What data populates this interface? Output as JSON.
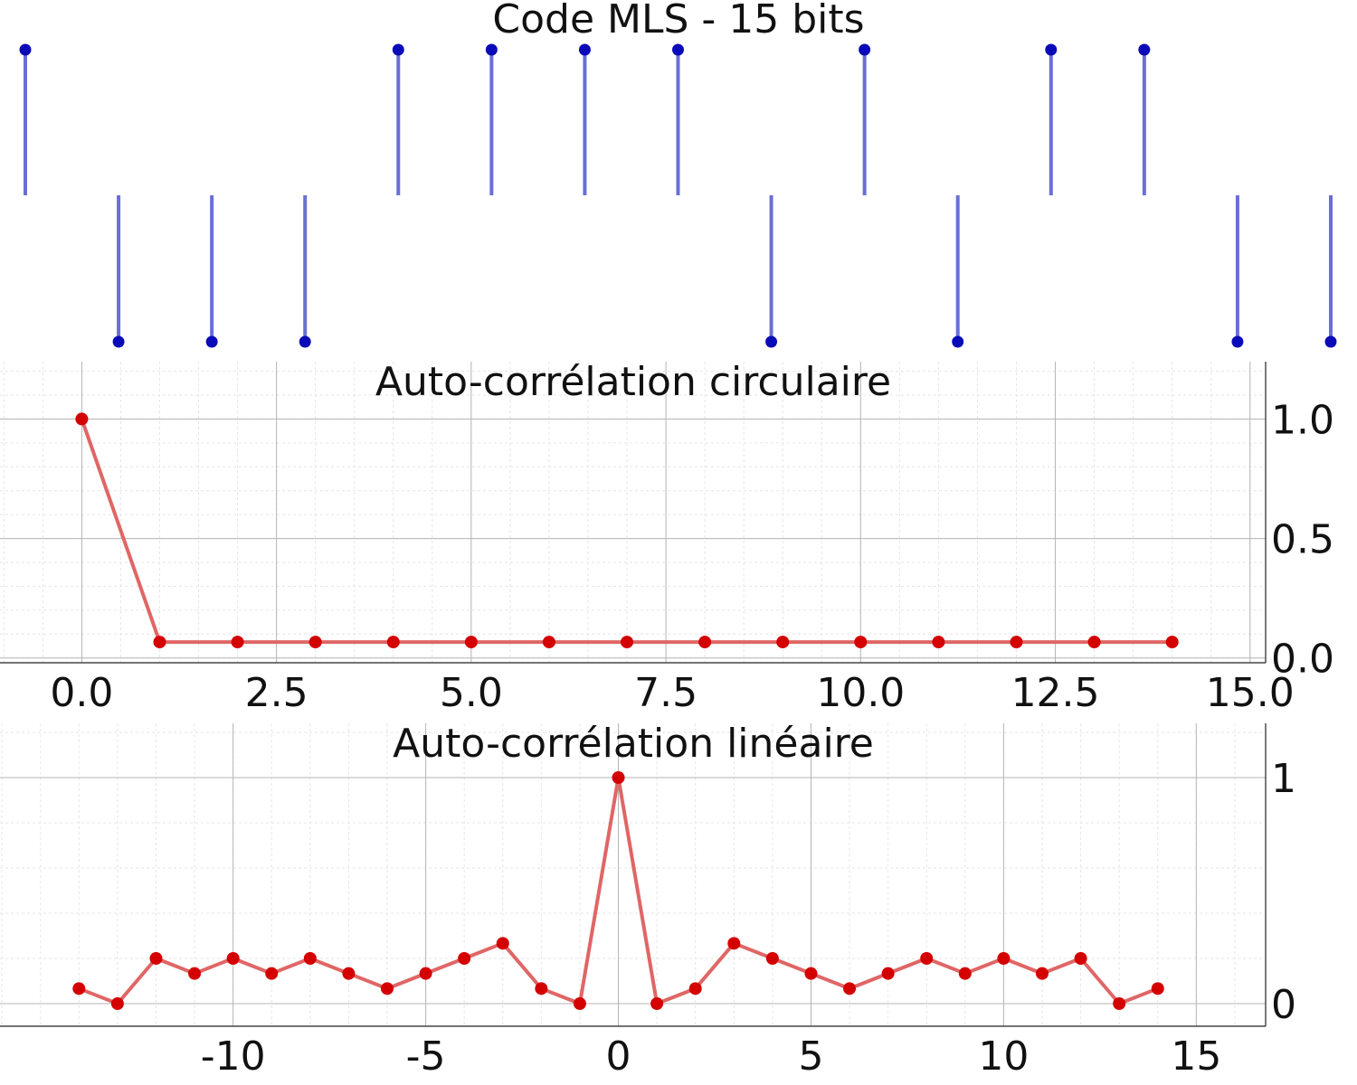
{
  "chart_data": [
    {
      "type": "stem",
      "title": "Code MLS - 15 bits",
      "x": [
        0,
        1,
        2,
        3,
        4,
        5,
        6,
        7,
        8,
        9,
        10,
        11,
        12,
        13,
        14
      ],
      "values": [
        1,
        -1,
        -1,
        -1,
        1,
        1,
        1,
        1,
        -1,
        1,
        -1,
        1,
        1,
        -1,
        -1
      ],
      "ylim": [
        -1,
        1
      ],
      "grid": false,
      "color": "#6a6fd6",
      "marker_color": "#0a0ab8"
    },
    {
      "type": "line",
      "title": "Auto-corrélation circulaire",
      "x": [
        0,
        1,
        2,
        3,
        4,
        5,
        6,
        7,
        8,
        9,
        10,
        11,
        12,
        13,
        14
      ],
      "values": [
        1,
        0.0667,
        0.0667,
        0.0667,
        0.0667,
        0.0667,
        0.0667,
        0.0667,
        0.0667,
        0.0667,
        0.0667,
        0.0667,
        0.0667,
        0.0667,
        0.0667
      ],
      "xlim": [
        -1.05,
        15.2
      ],
      "ylim": [
        -0.02,
        1.24
      ],
      "xticks": [
        0,
        2.5,
        5,
        7.5,
        10,
        12.5,
        15
      ],
      "xtick_labels": [
        "0.0",
        "2.5",
        "5.0",
        "7.5",
        "10.0",
        "12.5",
        "15.0"
      ],
      "yticks": [
        0,
        0.5,
        1
      ],
      "ytick_labels": [
        "0.0",
        "0.5",
        "1.0"
      ],
      "yaxis_side": "right",
      "grid": true,
      "color": "#e06666",
      "marker_color": "#d40000"
    },
    {
      "type": "line",
      "title": "Auto-corrélation linéaire",
      "x": [
        -14,
        -13,
        -12,
        -11,
        -10,
        -9,
        -8,
        -7,
        -6,
        -5,
        -4,
        -3,
        -2,
        -1,
        0,
        1,
        2,
        3,
        4,
        5,
        6,
        7,
        8,
        9,
        10,
        11,
        12,
        13,
        14
      ],
      "values": [
        0.0667,
        0,
        0.2,
        0.1333,
        0.2,
        0.1333,
        0.2,
        0.1333,
        0.0667,
        0.1333,
        0.2,
        0.2667,
        0.0667,
        0,
        1,
        0,
        0.0667,
        0.2667,
        0.2,
        0.1333,
        0.0667,
        0.1333,
        0.2,
        0.1333,
        0.2,
        0.1333,
        0.2,
        0,
        0.0667
      ],
      "xlim": [
        -16.05,
        16.8
      ],
      "ylim": [
        -0.1,
        1.24
      ],
      "xticks": [
        -10,
        -5,
        0,
        5,
        10,
        15
      ],
      "xtick_labels": [
        "-10",
        "-5",
        "0",
        "5",
        "10",
        "15"
      ],
      "yticks": [
        0,
        1
      ],
      "ytick_labels": [
        "0",
        "1"
      ],
      "yaxis_side": "right",
      "grid": true,
      "color": "#e06666",
      "marker_color": "#d40000"
    }
  ]
}
